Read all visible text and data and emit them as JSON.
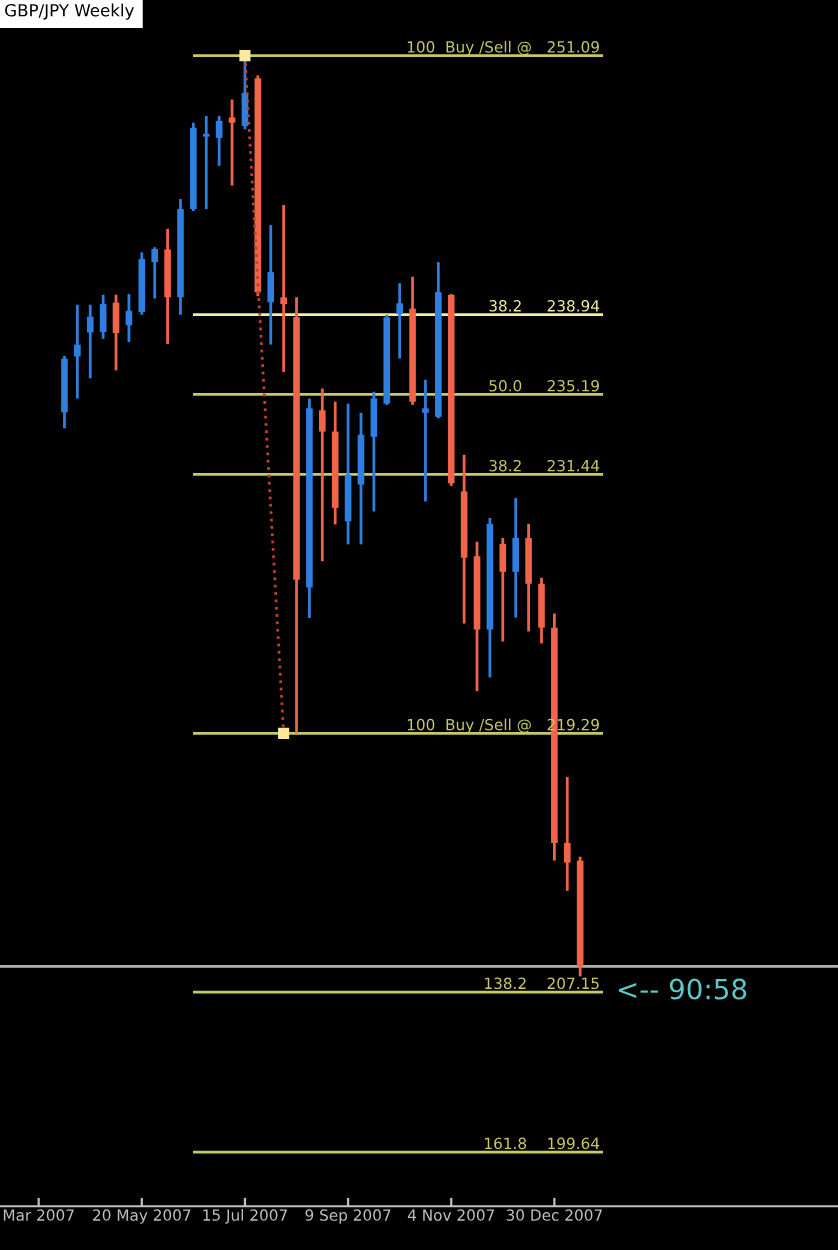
{
  "chart_data": {
    "type": "candlestick",
    "title": "GBP/JPY Weekly",
    "x": [
      "2007-04-08",
      "2007-04-15",
      "2007-04-22",
      "2007-04-29",
      "2007-05-06",
      "2007-05-13",
      "2007-05-20",
      "2007-05-27",
      "2007-06-03",
      "2007-06-10",
      "2007-06-17",
      "2007-06-24",
      "2007-07-01",
      "2007-07-08",
      "2007-07-15",
      "2007-07-22",
      "2007-07-29",
      "2007-08-05",
      "2007-08-12",
      "2007-08-19",
      "2007-08-26",
      "2007-09-02",
      "2007-09-09",
      "2007-09-16",
      "2007-09-23",
      "2007-09-30",
      "2007-10-07",
      "2007-10-14",
      "2007-10-21",
      "2007-10-28",
      "2007-11-04",
      "2007-11-11",
      "2007-11-18",
      "2007-11-25",
      "2007-12-02",
      "2007-12-09",
      "2007-12-16",
      "2007-12-23",
      "2007-12-30",
      "2008-01-06",
      "2008-01-13"
    ],
    "ohlc": [
      [
        234.35,
        237.0,
        233.6,
        236.87
      ],
      [
        236.97,
        239.4,
        235.0,
        237.53
      ],
      [
        238.1,
        239.4,
        235.95,
        238.84
      ],
      [
        238.12,
        239.87,
        237.8,
        239.43
      ],
      [
        239.5,
        239.87,
        236.32,
        238.07
      ],
      [
        238.44,
        239.9,
        237.65,
        239.12
      ],
      [
        239.06,
        241.86,
        238.93,
        241.55
      ],
      [
        241.4,
        242.1,
        239.69,
        242.02
      ],
      [
        242.0,
        242.96,
        237.56,
        239.75
      ],
      [
        239.75,
        244.36,
        238.93,
        243.89
      ],
      [
        243.89,
        247.94,
        243.8,
        247.7
      ],
      [
        247.29,
        248.26,
        243.89,
        247.42
      ],
      [
        247.23,
        248.26,
        245.92,
        248.03
      ],
      [
        248.19,
        249.03,
        244.99,
        247.94
      ],
      [
        247.79,
        251.09,
        247.63,
        249.34
      ],
      [
        250.03,
        250.16,
        239.8,
        239.99
      ],
      [
        239.52,
        243.14,
        237.53,
        240.93
      ],
      [
        239.75,
        244.08,
        236.25,
        239.43
      ],
      [
        238.81,
        239.75,
        219.29,
        226.5
      ],
      [
        226.13,
        235.0,
        224.7,
        234.54
      ],
      [
        234.45,
        235.47,
        227.37,
        233.45
      ],
      [
        233.45,
        234.85,
        229.09,
        229.87
      ],
      [
        229.24,
        234.76,
        228.16,
        231.43
      ],
      [
        230.96,
        234.33,
        228.16,
        233.3
      ],
      [
        233.2,
        235.32,
        229.7,
        235.0
      ],
      [
        234.76,
        238.93,
        234.7,
        238.81
      ],
      [
        238.96,
        240.41,
        236.88,
        239.47
      ],
      [
        239.22,
        240.71,
        234.7,
        234.85
      ],
      [
        234.33,
        235.88,
        230.17,
        234.54
      ],
      [
        234.14,
        241.4,
        234.07,
        239.99
      ],
      [
        239.87,
        239.9,
        230.9,
        231.02
      ],
      [
        230.64,
        232.36,
        224.44,
        227.53
      ],
      [
        227.6,
        228.28,
        221.27,
        224.16
      ],
      [
        224.16,
        229.4,
        221.92,
        229.12
      ],
      [
        228.18,
        228.46,
        223.6,
        226.87
      ],
      [
        226.87,
        230.33,
        224.72,
        228.46
      ],
      [
        228.46,
        229.12,
        224.07,
        226.31
      ],
      [
        226.31,
        226.59,
        223.51,
        224.25
      ],
      [
        224.25,
        224.91,
        213.32,
        214.15
      ],
      [
        214.15,
        217.24,
        211.9,
        213.22
      ],
      [
        213.32,
        213.5,
        207.89,
        208.36
      ]
    ],
    "colors": [
      "#2f7fe0",
      "#2f7fe0",
      "#2f7fe0",
      "#2f7fe0",
      "#f0644a",
      "#2f7fe0",
      "#2f7fe0",
      "#2f7fe0",
      "#f0644a",
      "#2f7fe0",
      "#2f7fe0",
      "#2f7fe0",
      "#2f7fe0",
      "#f0644a",
      "#2f7fe0",
      "#f0644a",
      "#2f7fe0",
      "#f0644a",
      "#f0644a",
      "#2f7fe0",
      "#f0644a",
      "#f0644a",
      "#2f7fe0",
      "#2f7fe0",
      "#2f7fe0",
      "#2f7fe0",
      "#2f7fe0",
      "#f0644a",
      "#2f7fe0",
      "#2f7fe0",
      "#f0644a",
      "#f0644a",
      "#f0644a",
      "#2f7fe0",
      "#f0644a",
      "#2f7fe0",
      "#f0644a",
      "#f0644a",
      "#f0644a",
      "#f0644a",
      "#f0644a"
    ],
    "series": [
      {
        "type": "line",
        "x": [
          "2007-07-15",
          "2007-08-05"
        ],
        "values": [
          251.09,
          219.29
        ],
        "color": "#c0402c",
        "line_style": "dotted",
        "marker": "square"
      }
    ],
    "ref_lines": [
      {
        "axis": "y",
        "value": 251.09,
        "label": "100  Buy /Sell @   251.09",
        "color": "#c8c864"
      },
      {
        "axis": "y",
        "value": 238.94,
        "label": "38.2     238.94",
        "color": "#f0f0a0"
      },
      {
        "axis": "y",
        "value": 235.19,
        "label": "50.0     235.19",
        "color": "#c8c864"
      },
      {
        "axis": "y",
        "value": 231.44,
        "label": "38.2     231.44",
        "color": "#c8c864"
      },
      {
        "axis": "y",
        "value": 219.29,
        "label": "100  Buy /Sell @   219.29",
        "color": "#c8c864"
      },
      {
        "axis": "y",
        "value": 207.15,
        "label": "138.2    207.15",
        "color": "#c8c864"
      },
      {
        "axis": "y",
        "value": 199.64,
        "label": "161.8    199.64",
        "color": "#c8c864"
      },
      {
        "axis": "y",
        "value": 208.36,
        "label": null,
        "color": "#b0b0b0"
      }
    ],
    "annotations": [
      "<-- 90:58"
    ],
    "xlim": [
      "2007-03-04",
      "2008-06-01"
    ],
    "ylim": [
      197.1,
      253.7
    ],
    "xticks": [
      {
        "value": "2007-03-25",
        "label": "Mar 2007"
      },
      {
        "value": "2007-05-20",
        "label": "20 May 2007"
      },
      {
        "value": "2007-07-15",
        "label": "15 Jul 2007"
      },
      {
        "value": "2007-09-09",
        "label": "9 Sep 2007"
      },
      {
        "value": "2007-11-04",
        "label": "4 Nov 2007"
      },
      {
        "value": "2007-12-30",
        "label": "30 Dec 2007"
      }
    ],
    "tick_labels": "x",
    "grid": false
  }
}
